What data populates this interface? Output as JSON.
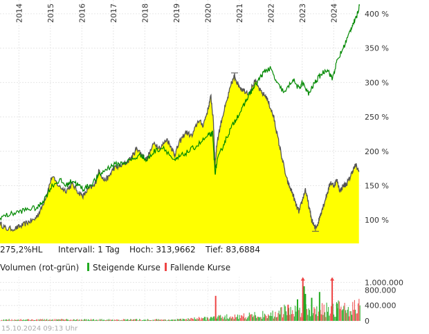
{
  "chart_data": [
    {
      "type": "area",
      "x_label_years": [
        "2014",
        "2015",
        "2016",
        "2017",
        "2018",
        "2019",
        "2020",
        "2021",
        "2022",
        "2023",
        "2024"
      ],
      "y_ticks": [
        {
          "value": 100,
          "label": "100 %"
        },
        {
          "value": 150,
          "label": "150 %"
        },
        {
          "value": 200,
          "label": "200 %"
        },
        {
          "value": 250,
          "label": "250 %"
        },
        {
          "value": 300,
          "label": "300 %"
        },
        {
          "value": 350,
          "label": "350 %"
        },
        {
          "value": 400,
          "label": "400 %"
        }
      ],
      "ylim": [
        66,
        420
      ],
      "xlim": [
        2013.4,
        2024.85
      ],
      "grid": true,
      "series": [
        {
          "role": "price-area",
          "color": "#ffff00",
          "line_color": "#555555",
          "points": [
            [
              2013.4,
              95
            ],
            [
              2013.6,
              87
            ],
            [
              2013.9,
              88
            ],
            [
              2014.1,
              92
            ],
            [
              2014.3,
              97
            ],
            [
              2014.5,
              101
            ],
            [
              2014.7,
              115
            ],
            [
              2014.9,
              140
            ],
            [
              2015.05,
              163
            ],
            [
              2015.3,
              148
            ],
            [
              2015.5,
              143
            ],
            [
              2015.7,
              152
            ],
            [
              2015.9,
              140
            ],
            [
              2016.05,
              135
            ],
            [
              2016.2,
              145
            ],
            [
              2016.4,
              150
            ],
            [
              2016.55,
              172
            ],
            [
              2016.7,
              158
            ],
            [
              2016.85,
              162
            ],
            [
              2017.0,
              175
            ],
            [
              2017.2,
              178
            ],
            [
              2017.4,
              183
            ],
            [
              2017.6,
              192
            ],
            [
              2017.75,
              205
            ],
            [
              2017.9,
              195
            ],
            [
              2018.05,
              188
            ],
            [
              2018.3,
              212
            ],
            [
              2018.5,
              205
            ],
            [
              2018.7,
              218
            ],
            [
              2018.85,
              205
            ],
            [
              2018.95,
              195
            ],
            [
              2019.1,
              213
            ],
            [
              2019.3,
              228
            ],
            [
              2019.5,
              222
            ],
            [
              2019.7,
              245
            ],
            [
              2019.85,
              238
            ],
            [
              2020.0,
              260
            ],
            [
              2020.1,
              280
            ],
            [
              2020.18,
              242
            ],
            [
              2020.23,
              180
            ],
            [
              2020.3,
              215
            ],
            [
              2020.45,
              248
            ],
            [
              2020.6,
              272
            ],
            [
              2020.75,
              298
            ],
            [
              2020.85,
              310
            ],
            [
              2020.95,
              298
            ],
            [
              2021.1,
              290
            ],
            [
              2021.3,
              285
            ],
            [
              2021.5,
              302
            ],
            [
              2021.7,
              285
            ],
            [
              2021.85,
              280
            ],
            [
              2022.0,
              262
            ],
            [
              2022.1,
              248
            ],
            [
              2022.2,
              225
            ],
            [
              2022.35,
              192
            ],
            [
              2022.5,
              160
            ],
            [
              2022.6,
              148
            ],
            [
              2022.7,
              138
            ],
            [
              2022.8,
              122
            ],
            [
              2022.9,
              112
            ],
            [
              2023.0,
              128
            ],
            [
              2023.1,
              145
            ],
            [
              2023.2,
              122
            ],
            [
              2023.3,
              100
            ],
            [
              2023.4,
              88
            ],
            [
              2023.5,
              95
            ],
            [
              2023.6,
              112
            ],
            [
              2023.7,
              125
            ],
            [
              2023.8,
              140
            ],
            [
              2023.9,
              155
            ],
            [
              2024.0,
              150
            ],
            [
              2024.1,
              158
            ],
            [
              2024.2,
              142
            ],
            [
              2024.3,
              150
            ],
            [
              2024.4,
              152
            ],
            [
              2024.5,
              160
            ],
            [
              2024.6,
              172
            ],
            [
              2024.7,
              180
            ],
            [
              2024.8,
              170
            ]
          ]
        },
        {
          "role": "benchmark-line",
          "color": "#008800",
          "points": [
            [
              2013.4,
              104
            ],
            [
              2013.7,
              108
            ],
            [
              2014.0,
              112
            ],
            [
              2014.3,
              116
            ],
            [
              2014.6,
              118
            ],
            [
              2014.8,
              130
            ],
            [
              2015.05,
              150
            ],
            [
              2015.3,
              158
            ],
            [
              2015.5,
              150
            ],
            [
              2015.7,
              158
            ],
            [
              2015.9,
              150
            ],
            [
              2016.05,
              145
            ],
            [
              2016.3,
              152
            ],
            [
              2016.55,
              165
            ],
            [
              2016.8,
              175
            ],
            [
              2017.0,
              180
            ],
            [
              2017.3,
              183
            ],
            [
              2017.6,
              188
            ],
            [
              2017.9,
              195
            ],
            [
              2018.05,
              186
            ],
            [
              2018.3,
              200
            ],
            [
              2018.6,
              206
            ],
            [
              2018.95,
              185
            ],
            [
              2019.1,
              192
            ],
            [
              2019.4,
              200
            ],
            [
              2019.7,
              210
            ],
            [
              2020.0,
              222
            ],
            [
              2020.15,
              226
            ],
            [
              2020.23,
              168
            ],
            [
              2020.3,
              186
            ],
            [
              2020.5,
              210
            ],
            [
              2020.7,
              230
            ],
            [
              2020.9,
              248
            ],
            [
              2021.1,
              262
            ],
            [
              2021.3,
              282
            ],
            [
              2021.5,
              295
            ],
            [
              2021.7,
              310
            ],
            [
              2021.85,
              318
            ],
            [
              2022.0,
              320
            ],
            [
              2022.2,
              298
            ],
            [
              2022.45,
              285
            ],
            [
              2022.7,
              305
            ],
            [
              2022.9,
              290
            ],
            [
              2023.0,
              300
            ],
            [
              2023.2,
              283
            ],
            [
              2023.4,
              300
            ],
            [
              2023.6,
              312
            ],
            [
              2023.8,
              320
            ],
            [
              2023.95,
              305
            ],
            [
              2024.1,
              330
            ],
            [
              2024.3,
              350
            ],
            [
              2024.5,
              372
            ],
            [
              2024.6,
              385
            ],
            [
              2024.7,
              392
            ],
            [
              2024.82,
              412
            ]
          ]
        }
      ],
      "high_marker": {
        "x": 2020.85,
        "value": 313.9662
      },
      "low_marker": {
        "x": 2023.42,
        "value": 83.6884
      }
    },
    {
      "type": "bar",
      "role": "volume",
      "y_ticks": [
        {
          "value": 0,
          "label": "0"
        },
        {
          "value": 400000,
          "label": "400.000"
        },
        {
          "value": 800000,
          "label": "800.000"
        },
        {
          "value": 1000000,
          "label": "1.000.000"
        }
      ],
      "ylim": [
        0,
        1150000
      ],
      "colors": {
        "up": "#22aa22",
        "down": "#ee4444"
      },
      "spikes": [
        {
          "x": 2020.25,
          "value": 650000,
          "dir": "down"
        },
        {
          "x": 2022.55,
          "value": 420000,
          "dir": "down"
        },
        {
          "x": 2022.85,
          "value": 560000,
          "dir": "up"
        },
        {
          "x": 2023.02,
          "value": 1100000,
          "dir": "down"
        },
        {
          "x": 2023.06,
          "value": 900000,
          "dir": "up"
        },
        {
          "x": 2023.1,
          "value": 700000,
          "dir": "up"
        },
        {
          "x": 2023.3,
          "value": 600000,
          "dir": "up"
        },
        {
          "x": 2023.55,
          "value": 750000,
          "dir": "up"
        },
        {
          "x": 2023.95,
          "value": 1100000,
          "dir": "down"
        },
        {
          "x": 2024.1,
          "value": 450000,
          "dir": "up"
        }
      ]
    }
  ],
  "info": {
    "perf": "275,2%HL",
    "interval": "Intervall: 1 Tag",
    "high": "Hoch: 313,9662",
    "low": "Tief: 83,6884"
  },
  "legend": {
    "volume_label": "Volumen (rot-grün)",
    "up_label": "Steigende Kurse",
    "down_label": "Fallende Kurse"
  },
  "footer": {
    "timestamp": "15.10.2024 09:13 Uhr"
  }
}
